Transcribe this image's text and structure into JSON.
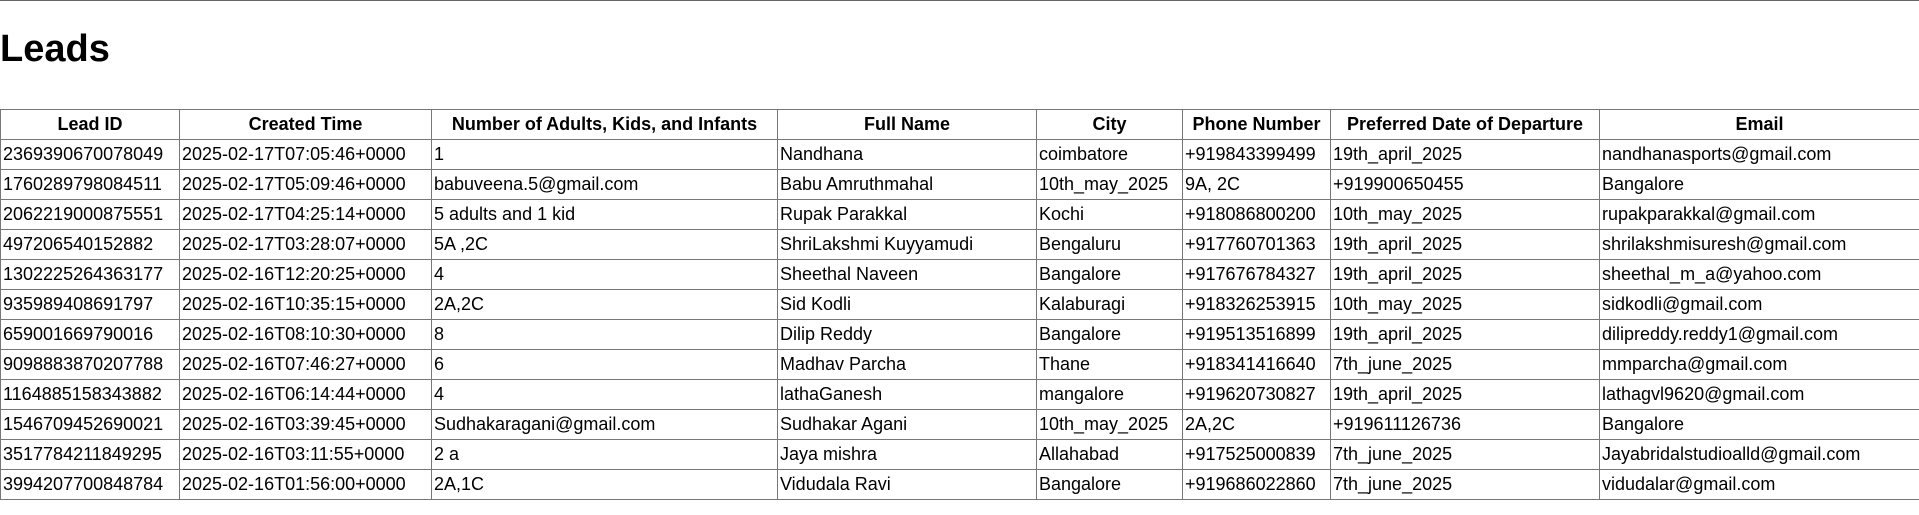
{
  "page": {
    "title": "Leads"
  },
  "table": {
    "headers": [
      "Lead ID",
      "Created Time",
      "Number of Adults, Kids, and Infants",
      "Full Name",
      "City",
      "Phone Number",
      "Preferred Date of Departure",
      "Email"
    ],
    "rows": [
      [
        "2369390670078049",
        "2025-02-17T07:05:46+0000",
        "1",
        "Nandhana",
        "coimbatore",
        "+919843399499",
        "19th_april_2025",
        "nandhanasports@gmail.com"
      ],
      [
        "1760289798084511",
        "2025-02-17T05:09:46+0000",
        "babuveena.5@gmail.com",
        "Babu Amruthmahal",
        "10th_may_2025",
        "9A, 2C",
        "+919900650455",
        "Bangalore"
      ],
      [
        "2062219000875551",
        "2025-02-17T04:25:14+0000",
        "5 adults and 1 kid",
        "Rupak Parakkal",
        "Kochi",
        "+918086800200",
        "10th_may_2025",
        "rupakparakkal@gmail.com"
      ],
      [
        "497206540152882",
        "2025-02-17T03:28:07+0000",
        "5A ,2C",
        "ShriLakshmi Kuyyamudi",
        "Bengaluru",
        "+917760701363",
        "19th_april_2025",
        "shrilakshmisuresh@gmail.com"
      ],
      [
        "1302225264363177",
        "2025-02-16T12:20:25+0000",
        "4",
        "Sheethal Naveen",
        "Bangalore",
        "+917676784327",
        "19th_april_2025",
        "sheethal_m_a@yahoo.com"
      ],
      [
        "935989408691797",
        "2025-02-16T10:35:15+0000",
        "2A,2C",
        "Sid Kodli",
        "Kalaburagi",
        "+918326253915",
        "10th_may_2025",
        "sidkodli@gmail.com"
      ],
      [
        "659001669790016",
        "2025-02-16T08:10:30+0000",
        "8",
        "Dilip Reddy",
        "Bangalore",
        "+919513516899",
        "19th_april_2025",
        "dilipreddy.reddy1@gmail.com"
      ],
      [
        "9098883870207788",
        "2025-02-16T07:46:27+0000",
        "6",
        "Madhav Parcha",
        "Thane",
        "+918341416640",
        "7th_june_2025",
        "mmparcha@gmail.com"
      ],
      [
        "1164885158343882",
        "2025-02-16T06:14:44+0000",
        "4",
        "lathaGanesh",
        "mangalore",
        "+919620730827",
        "19th_april_2025",
        "lathagvl9620@gmail.com"
      ],
      [
        "1546709452690021",
        "2025-02-16T03:39:45+0000",
        "Sudhakaragani@gmail.com",
        "Sudhakar Agani",
        "10th_may_2025",
        "2A,2C",
        "+919611126736",
        "Bangalore"
      ],
      [
        "3517784211849295",
        "2025-02-16T03:11:55+0000",
        "2 a",
        "Jaya mishra",
        "Allahabad",
        "+917525000839",
        "7th_june_2025",
        "Jayabridalstudioalld@gmail.com"
      ],
      [
        "3994207700848784",
        "2025-02-16T01:56:00+0000",
        "2A,1C",
        "Vidudala Ravi",
        "Bangalore",
        "+919686022860",
        "7th_june_2025",
        "vidudalar@gmail.com"
      ]
    ]
  }
}
